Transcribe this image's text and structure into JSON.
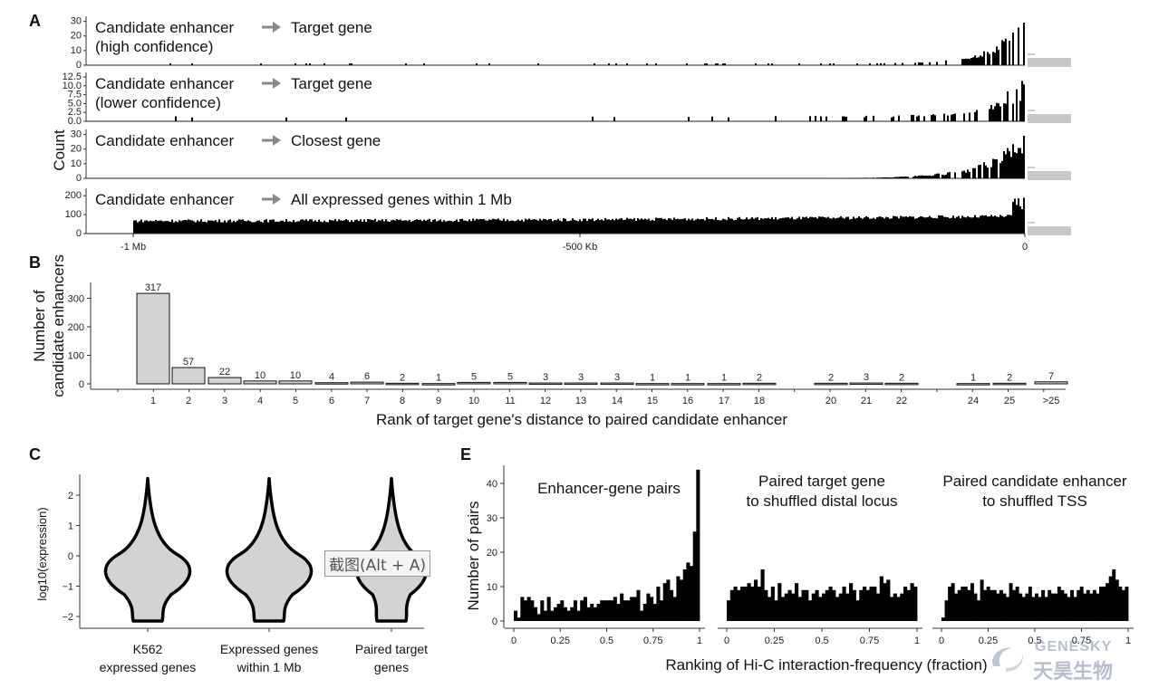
{
  "panels": {
    "A": "A",
    "B": "B",
    "C": "C",
    "E": "E"
  },
  "panelA": {
    "ylabel": "Count",
    "arrow_glyph": "→",
    "x_ticks": [
      "-1 Mb",
      "-500 Kb",
      "0"
    ],
    "tracks": [
      {
        "left": "Candidate enhancer",
        "left2": "(high confidence)",
        "right": "Target gene",
        "ticks": [
          "0",
          "10",
          "20",
          "30"
        ],
        "max": 32
      },
      {
        "left": "Candidate enhancer",
        "left2": "(lower confidence)",
        "right": "Target gene",
        "ticks": [
          "0.0",
          "2.5",
          "5.0",
          "7.5",
          "10.0",
          "12.5"
        ],
        "max": 13
      },
      {
        "left": "Candidate enhancer",
        "left2": "",
        "right": "Closest gene",
        "ticks": [
          "0",
          "10",
          "20",
          "30"
        ],
        "max": 35
      },
      {
        "left": "Candidate enhancer",
        "left2": "",
        "right": "All expressed genes within 1 Mb",
        "ticks": [
          "0",
          "100",
          "200"
        ],
        "max": 240
      }
    ]
  },
  "chart_data": [
    {
      "type": "bar",
      "panel": "B",
      "ylabel": "Number of candidate enhancers",
      "ylabel_line1": "Number of",
      "ylabel_line2": "candidate enhancers",
      "xlabel": "Rank of target gene's distance to paired candidate enhancer",
      "y_ticks": [
        "0",
        "100",
        "200",
        "300"
      ],
      "ylim": [
        0,
        330
      ],
      "categories": [
        "1",
        "2",
        "3",
        "4",
        "5",
        "6",
        "7",
        "8",
        "9",
        "10",
        "11",
        "12",
        "13",
        "14",
        "15",
        "16",
        "17",
        "18",
        "20",
        "21",
        "22",
        "24",
        "25",
        ">25"
      ],
      "values": [
        317,
        57,
        22,
        10,
        10,
        4,
        6,
        2,
        1,
        5,
        5,
        3,
        3,
        3,
        1,
        1,
        1,
        2,
        2,
        3,
        2,
        1,
        2,
        7
      ],
      "value_labels": [
        "317",
        "57",
        "22",
        "10",
        "10",
        "4",
        "6",
        "2",
        "1",
        "5",
        "5",
        "3",
        "3",
        "3",
        "1",
        "1",
        "1",
        "2",
        "2",
        "3",
        "2",
        "1",
        "2",
        "7"
      ]
    },
    {
      "type": "violin",
      "panel": "C",
      "ylabel": "log10(expression)",
      "y_ticks": [
        "2",
        "1",
        "0",
        "−1",
        "−2"
      ],
      "ylim": [
        -2.3,
        2.6
      ],
      "categories": [
        {
          "line1": "K562",
          "line2": "expressed genes"
        },
        {
          "line1": "Expressed genes",
          "line2": "within 1 Mb"
        },
        {
          "line1": "Paired target",
          "line2": "genes"
        }
      ]
    },
    {
      "type": "bar",
      "panel": "E",
      "ylabel": "Number of pairs",
      "xlabel": "Ranking of Hi-C interaction-frequency (fraction)",
      "y_ticks": [
        "0",
        "10",
        "20",
        "30",
        "40"
      ],
      "ylim": [
        0,
        44
      ],
      "x_ticks": [
        "0",
        "0.25",
        "0.5",
        "0.75",
        "1"
      ],
      "facets": [
        {
          "title_line1": "Enhancer-gene pairs",
          "title_line2": "",
          "values": [
            3,
            1,
            7,
            6,
            7,
            6,
            4,
            2,
            6,
            3,
            7,
            3,
            4,
            5,
            6,
            4,
            3,
            4,
            6,
            3,
            6,
            7,
            4,
            5,
            4,
            5,
            6,
            6,
            6,
            6,
            7,
            5,
            8,
            6,
            6,
            7,
            7,
            9,
            3,
            5,
            8,
            7,
            5,
            10,
            6,
            11,
            12,
            9,
            7,
            13,
            12,
            15,
            17,
            16,
            26,
            44
          ]
        },
        {
          "title_line1": "Paired target gene",
          "title_line2": "to shuffled distal locus",
          "values": [
            6,
            9,
            10,
            9,
            10,
            10,
            11,
            10,
            12,
            10,
            15,
            9,
            7,
            10,
            6,
            11,
            7,
            8,
            9,
            8,
            11,
            7,
            9,
            9,
            6,
            8,
            9,
            7,
            8,
            9,
            10,
            9,
            7,
            8,
            10,
            8,
            11,
            9,
            6,
            9,
            10,
            9,
            10,
            10,
            8,
            13,
            11,
            12,
            7,
            8,
            7,
            8,
            10,
            9,
            11,
            10
          ]
        },
        {
          "title_line1": "Paired candidate enhancer",
          "title_line2": "to shuffled TSS",
          "values": [
            1,
            6,
            10,
            11,
            8,
            9,
            10,
            10,
            9,
            11,
            8,
            6,
            12,
            9,
            10,
            9,
            9,
            8,
            9,
            8,
            7,
            11,
            9,
            10,
            8,
            7,
            8,
            10,
            7,
            8,
            7,
            9,
            7,
            9,
            8,
            8,
            10,
            9,
            8,
            7,
            9,
            7,
            9,
            10,
            8,
            9,
            8,
            9,
            8,
            10,
            10,
            11,
            13,
            15,
            12,
            10,
            9,
            10
          ]
        }
      ]
    }
  ],
  "tooltip": "截图(Alt + A)",
  "watermark": {
    "line1": "GENESKY",
    "line2": "天昊生物"
  }
}
